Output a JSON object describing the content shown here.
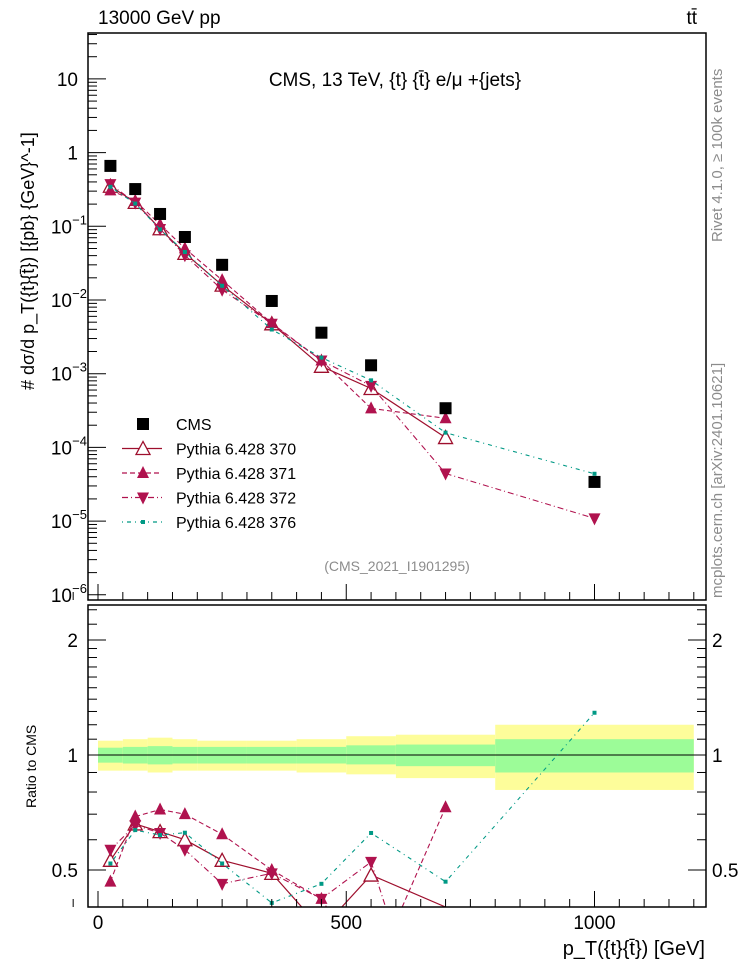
{
  "header": {
    "energy_label": "13000 GeV pp",
    "process_label": "tt̄",
    "plot_title": "CMS, 13 TeV, {t} {t̄} e/μ +{jets}",
    "watermark": "(CMS_2021_I1901295)",
    "side_rivet": "Rivet 4.1.0, ≥ 100k events",
    "side_mcplots": "mcplots.cern.ch [arXiv:2401.10621]"
  },
  "chart_data": {
    "type": "scatter",
    "title": "CMS, 13 TeV, {t} {t̄} e/μ +{jets}",
    "xlabel": "p_T({t}{t̄}) [GeV]",
    "ylabel": "# dσ/d p_T({t}{t̄}) [{pb} {GeV}^-1]",
    "ratio_ylabel": "Ratio to CMS",
    "xlim": [
      -20,
      1225
    ],
    "ylim": [
      1e-06,
      42
    ],
    "ratio_ylim": [
      0.4,
      2.47
    ],
    "yscale": "log",
    "ratio_yscale": "log",
    "legend_position": "lower-left",
    "x_ticks": [
      {
        "v": 0,
        "label": "0"
      },
      {
        "v": 500,
        "label": "500"
      },
      {
        "v": 1000,
        "label": "1000"
      }
    ],
    "y_ticks": [
      {
        "v": 10,
        "base": "10",
        "exp": ""
      },
      {
        "v": 1,
        "base": "1",
        "exp": ""
      },
      {
        "v": 0.1,
        "base": "10",
        "exp": "−1"
      },
      {
        "v": 0.01,
        "base": "10",
        "exp": "−2"
      },
      {
        "v": 0.001,
        "base": "10",
        "exp": "−3"
      },
      {
        "v": 0.0001,
        "base": "10",
        "exp": "−4"
      },
      {
        "v": 1e-05,
        "base": "10",
        "exp": "−5"
      },
      {
        "v": 1e-06,
        "base": "10",
        "exp": "−6"
      }
    ],
    "ratio_ticks": [
      {
        "v": 2,
        "label": "2"
      },
      {
        "v": 1,
        "label": "1"
      },
      {
        "v": 0.5,
        "label": "0.5"
      }
    ],
    "bin_edges": [
      0,
      50,
      100,
      150,
      200,
      300,
      400,
      500,
      600,
      800,
      1200
    ],
    "x": [
      25,
      75,
      125,
      175,
      250,
      350,
      450,
      550,
      700,
      1000
    ],
    "data": {
      "name": "CMS",
      "values": [
        0.66,
        0.32,
        0.147,
        0.0716,
        0.03,
        0.0097,
        0.0036,
        0.0013,
        0.00034,
        3.4e-05
      ]
    },
    "ratio_band_yellow": [
      [
        0.91,
        1.09
      ],
      [
        0.91,
        1.1
      ],
      [
        0.9,
        1.11
      ],
      [
        0.91,
        1.1
      ],
      [
        0.91,
        1.09
      ],
      [
        0.91,
        1.09
      ],
      [
        0.9,
        1.1
      ],
      [
        0.89,
        1.12
      ],
      [
        0.87,
        1.13
      ],
      [
        0.81,
        1.2
      ]
    ],
    "ratio_band_green": [
      [
        0.955,
        1.045
      ],
      [
        0.95,
        1.05
      ],
      [
        0.945,
        1.055
      ],
      [
        0.95,
        1.05
      ],
      [
        0.95,
        1.05
      ],
      [
        0.95,
        1.05
      ],
      [
        0.95,
        1.05
      ],
      [
        0.945,
        1.06
      ],
      [
        0.935,
        1.065
      ],
      [
        0.9,
        1.1
      ]
    ],
    "series": [
      {
        "name": "Pythia 6.428 370",
        "marker": "open-triangle",
        "style": "solid",
        "color": "#9e0f2d",
        "ratio": [
          0.53,
          0.66,
          0.63,
          0.6,
          0.53,
          0.49,
          0.35,
          0.485,
          0.4,
          null
        ]
      },
      {
        "name": "Pythia 6.428 371",
        "marker": "triangle-up",
        "style": "dashed",
        "color": "#b0124e",
        "ratio": [
          0.466,
          0.69,
          0.72,
          0.7,
          0.62,
          0.5,
          0.42,
          0.26,
          0.73,
          null
        ]
      },
      {
        "name": "Pythia 6.428 372",
        "marker": "triangle-down",
        "style": "dashdot",
        "color": "#b0124e",
        "ratio": [
          0.565,
          0.655,
          0.625,
          0.565,
          0.46,
          0.49,
          0.42,
          0.525,
          0.13,
          0.32
        ]
      },
      {
        "name": "Pythia 6.428 376",
        "marker": "small-square",
        "style": "dotdash",
        "color": "#009985",
        "ratio": [
          0.52,
          0.636,
          0.617,
          0.626,
          0.52,
          0.41,
          0.46,
          0.625,
          0.466,
          1.29
        ]
      }
    ]
  }
}
